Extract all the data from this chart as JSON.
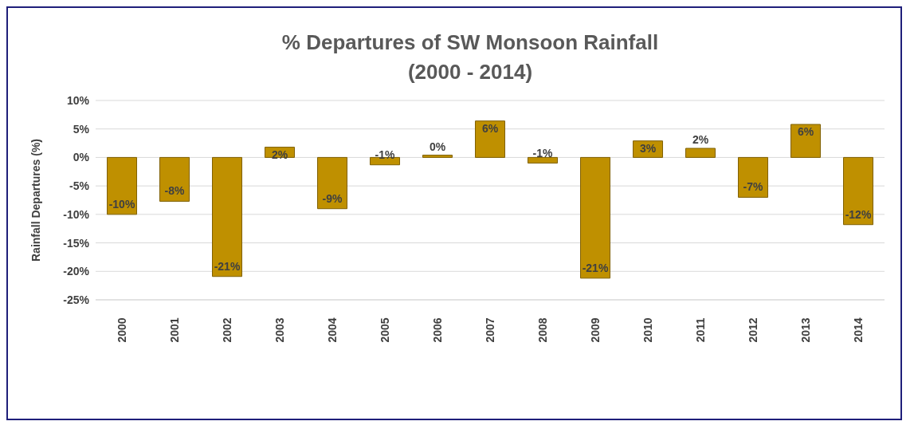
{
  "chart_data": {
    "type": "bar",
    "title": "% Departures of SW Monsoon  Rainfall",
    "subtitle": "(2000 - 2014)",
    "ylabel": "Rainfall  Departures (%)",
    "categories": [
      "2000",
      "2001",
      "2002",
      "2003",
      "2004",
      "2005",
      "2006",
      "2007",
      "2008",
      "2009",
      "2010",
      "2011",
      "2012",
      "2013",
      "2014"
    ],
    "values": [
      -10,
      -7.7,
      -20.9,
      1.8,
      -9,
      -1.3,
      0.4,
      6.4,
      -1,
      -21.2,
      2.9,
      1.6,
      -7,
      5.8,
      -11.8
    ],
    "value_labels": [
      "-10%",
      "-8%",
      "-21%",
      "2%",
      "-9%",
      "-1%",
      "0%",
      "6%",
      "-1%",
      "-21%",
      "3%",
      "2%",
      "-7%",
      "6%",
      "-12%"
    ],
    "color": "#bf9000",
    "ylim": [
      -25,
      10
    ],
    "yticks": [
      {
        "value": -25,
        "label": "-25%"
      },
      {
        "value": -20,
        "label": "-20%"
      },
      {
        "value": -15,
        "label": "-15%"
      },
      {
        "value": -10,
        "label": "-10%"
      },
      {
        "value": -5,
        "label": "-5%"
      },
      {
        "value": 0,
        "label": "0%"
      },
      {
        "value": 5,
        "label": "5%"
      },
      {
        "value": 10,
        "label": "10%"
      }
    ],
    "grid": "y",
    "legend": false
  }
}
